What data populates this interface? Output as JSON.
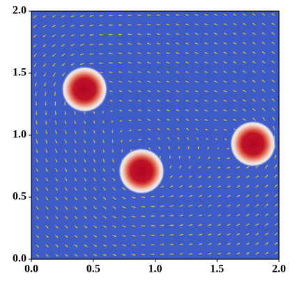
{
  "chart_data": {
    "type": "scatter",
    "series": [
      {
        "x": [
          0.43,
          0.89,
          1.79
        ],
        "values": [
          1.37,
          0.71,
          0.93
        ],
        "sizes": [
          0.14,
          0.14,
          0.14
        ]
      }
    ],
    "background": "#3f5bc6",
    "blob_color": "#b40426",
    "arrow_color": "#d9c53a",
    "xlim": [
      0,
      2
    ],
    "ylim": [
      0,
      2
    ],
    "xticks": [
      {
        "value": 0,
        "label": "0.0"
      },
      0.5,
      {
        "value": 1,
        "label": "1.0"
      },
      1.5,
      {
        "value": 2,
        "label": "2.0"
      }
    ],
    "yticks": [
      {
        "value": 0,
        "label": "0.0"
      },
      0.5,
      {
        "value": 1,
        "label": "1.0"
      },
      1.5,
      {
        "value": 2,
        "label": "2.0"
      }
    ]
  }
}
